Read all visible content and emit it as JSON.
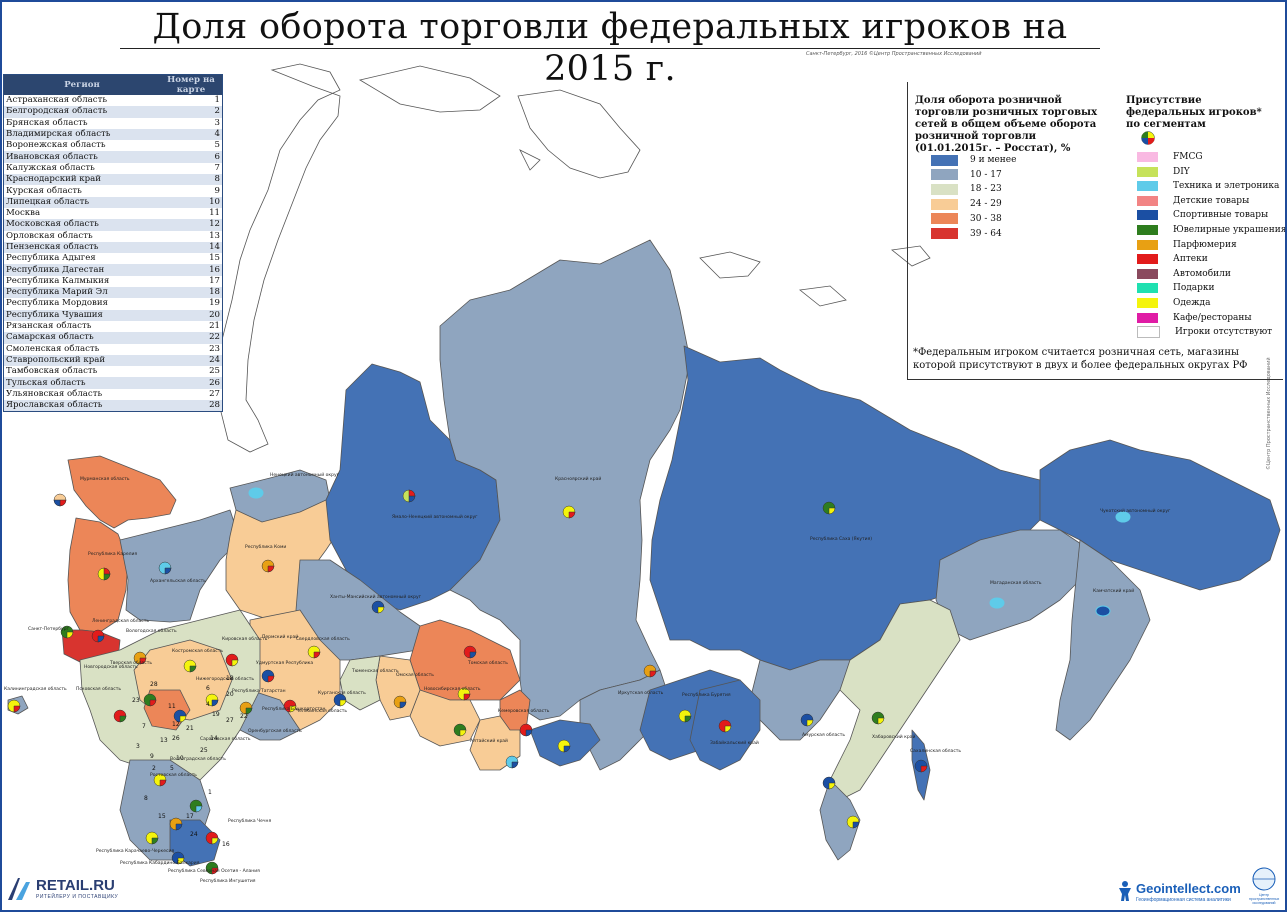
{
  "title": "Доля оборота торговли федеральных игроков на 2015 г.",
  "credit": "Санкт-Петербург, 2016 ©Центр Пространственных Исследований",
  "side_credit": "©Центр Пространственных Исследований",
  "colors": {
    "band_lowest": "#4472b5",
    "band_low": "#8fa5bf",
    "band_mid": "#d9e1c4",
    "band_high": "#f8cc96",
    "band_higher": "#ec8658",
    "band_highest": "#d8342f",
    "water": "#ffffff",
    "border": "#666666"
  },
  "table": {
    "header_region": "Регион",
    "header_number": "Номер на карте",
    "rows": [
      {
        "region": "Астраханская область",
        "num": "1"
      },
      {
        "region": "Белгородская область",
        "num": "2"
      },
      {
        "region": "Брянская область",
        "num": "3"
      },
      {
        "region": "Владимирская область",
        "num": "4"
      },
      {
        "region": "Воронежская область",
        "num": "5"
      },
      {
        "region": "Ивановская область",
        "num": "6"
      },
      {
        "region": "Калужская область",
        "num": "7"
      },
      {
        "region": "Краснодарский край",
        "num": "8"
      },
      {
        "region": "Курская область",
        "num": "9"
      },
      {
        "region": "Липецкая область",
        "num": "10"
      },
      {
        "region": "Москва",
        "num": "11"
      },
      {
        "region": "Московская область",
        "num": "12"
      },
      {
        "region": "Орловская область",
        "num": "13"
      },
      {
        "region": "Пензенская область",
        "num": "14"
      },
      {
        "region": "Республика Адыгея",
        "num": "15"
      },
      {
        "region": "Республика Дагестан",
        "num": "16"
      },
      {
        "region": "Республика Калмыкия",
        "num": "17"
      },
      {
        "region": "Республика Марий Эл",
        "num": "18"
      },
      {
        "region": "Республика Мордовия",
        "num": "19"
      },
      {
        "region": "Республика Чувашия",
        "num": "20"
      },
      {
        "region": "Рязанская область",
        "num": "21"
      },
      {
        "region": "Самарская область",
        "num": "22"
      },
      {
        "region": "Смоленская область",
        "num": "23"
      },
      {
        "region": "Ставропольский край",
        "num": "24"
      },
      {
        "region": "Тамбовская область",
        "num": "25"
      },
      {
        "region": "Тульская область",
        "num": "26"
      },
      {
        "region": "Ульяновская область",
        "num": "27"
      },
      {
        "region": "Ярославская область",
        "num": "28"
      }
    ]
  },
  "legend": {
    "share_title": "Доля оборота розничной торговли розничных торговых сетей в общем объеме оборота розничной торговли (01.01.2015г. – Росстат), %",
    "bands": [
      {
        "label": "9 и менее",
        "color": "#4472b5"
      },
      {
        "label": "10 - 17",
        "color": "#8fa5bf"
      },
      {
        "label": "18 - 23",
        "color": "#d9e1c4"
      },
      {
        "label": "24 - 29",
        "color": "#f8cc96"
      },
      {
        "label": "30 - 38",
        "color": "#ec8658"
      },
      {
        "label": "39 - 64",
        "color": "#d8342f"
      }
    ],
    "segments_title": "Присутствие федеральных игроков* по сегментам",
    "segments": [
      {
        "label": "FMCG",
        "color": "#f9b9e2"
      },
      {
        "label": "DIY",
        "color": "#c6e25a"
      },
      {
        "label": "Техника и элетроника",
        "color": "#5fcbe9"
      },
      {
        "label": "Детские товары",
        "color": "#f28484"
      },
      {
        "label": "Спортивные товары",
        "color": "#1b4fa3"
      },
      {
        "label": "Ювелирные украшения",
        "color": "#2e7d1e"
      },
      {
        "label": "Парфюмерия",
        "color": "#e8a013"
      },
      {
        "label": "Аптеки",
        "color": "#e21b1b"
      },
      {
        "label": "Автомобили",
        "color": "#8a4a5e"
      },
      {
        "label": "Подарки",
        "color": "#1fe0b0"
      },
      {
        "label": "Одежда",
        "color": "#f4f40c"
      },
      {
        "label": "Кафе/рестораны",
        "color": "#e01ca5"
      },
      {
        "label": "Игроки отсутствуют",
        "color": "#ffffff"
      }
    ],
    "footnote": "*Федеральным игроком считается розничная сеть, магазины которой присутствуют в двух и более федеральных округах РФ"
  },
  "map_labels": {
    "spb": "Санкт-Петербург",
    "kaliningrad": "Калининградская область",
    "murmansk": "Мурманская область",
    "karelia": "Республика Карелия",
    "arkhangelsk": "Архангельская область",
    "nenets": "Ненецкий автономный округ",
    "komi": "Республика Коми",
    "yamal": "Ямало-Ненецкий автономный округ",
    "krasnoyarsk": "Красноярский край",
    "yakutia": "Республика Саха (Якутия)",
    "chukotka": "Чукотский автономный округ",
    "magadan": "Магаданская область",
    "kamchatka": "Камчатский край",
    "khabarovsk": "Хабаровский край",
    "sakhalin": "Сахалинская область",
    "chechnya": "Республика Чечня",
    "ingushetia": "Республика Ингушетия",
    "ossetia": "Республика Северная Осетия - Алания",
    "kbr": "Республика Кабардино-Балкария",
    "kchr": "Республика Карачаево-Черкесия",
    "khmao": "Ханты-Мансийский автономный округ",
    "tomsk": "Томская область",
    "irkutsk": "Иркутская область",
    "tyumen": "Тюменская область",
    "omsk": "Омская область",
    "novosibirsk": "Новосибирская область",
    "altai_krai": "Алтайский край",
    "buryatia": "Республика Бурятия",
    "zabaikal": "Забайкальский край",
    "amur": "Амурская область",
    "sverdlovsk": "Свердловская область",
    "perm": "Пермский край",
    "bashkortostan": "Республика Башкортостан",
    "tatarstan": "Республика Татарстан",
    "orenburg": "Оренбургская область",
    "kirov": "Кировская область",
    "vologda": "Вологодская область",
    "tver": "Тверская область",
    "novgorod": "Новгородская область",
    "pskov": "Псковская область",
    "leningrad": "Ленинградская область",
    "kostroma": "Костромская область",
    "nizhny": "Нижегородская область",
    "udmurtia": "Удмуртская Республика",
    "chelyabinsk": "Челябинская область",
    "kurgan": "Курганская область",
    "kemerovo": "Кемеровская область",
    "volgograd": "Волгоградская область",
    "saratov": "Саратовская область",
    "rostov": "Ростовская область"
  },
  "logos": {
    "retail_name": "RETAIL.RU",
    "retail_tagline": "РИТЕЙЛЕРУ И ПОСТАВЩИКУ",
    "geo_name": "Geointellect",
    "geo_suffix": ".com",
    "geo_tagline": "Геоинформационная система аналитики",
    "geo2_tagline": "Центр пространственных исследований"
  }
}
